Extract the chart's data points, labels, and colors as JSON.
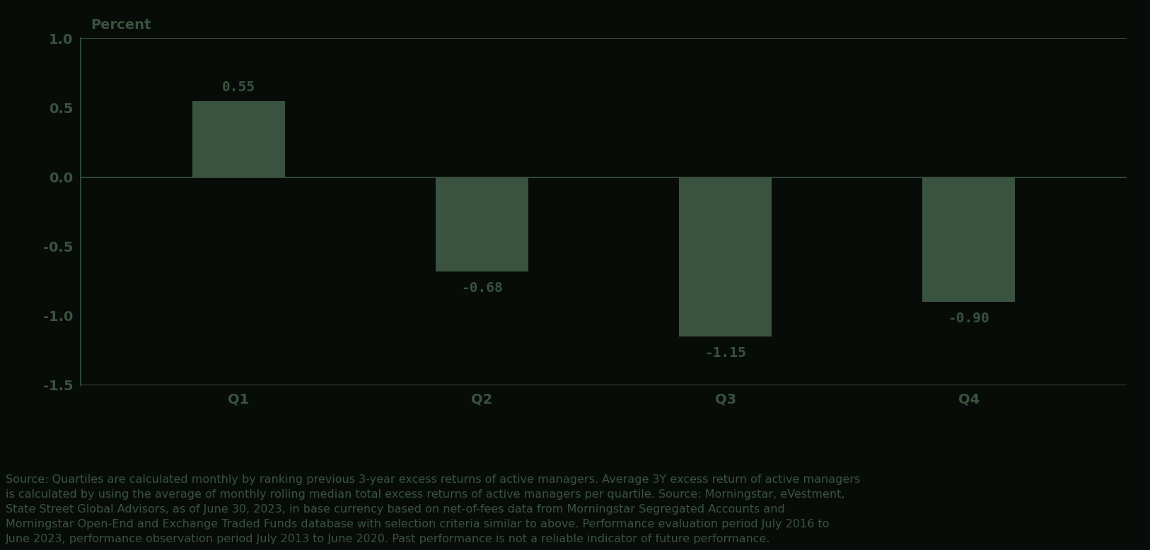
{
  "categories": [
    "Q1",
    "Q2",
    "Q3",
    "Q4"
  ],
  "values": [
    0.55,
    -0.68,
    -1.15,
    -0.9
  ],
  "bar_color": "#3a5240",
  "ylabel": "Percent",
  "ylim": [
    -1.5,
    1.0
  ],
  "yticks": [
    -1.5,
    -1.0,
    -0.5,
    0.0,
    0.5,
    1.0
  ],
  "background_color": "#080c08",
  "text_color": "#3a5240",
  "axis_color": "#3a5240",
  "bar_width": 0.38,
  "label_fontsize": 14,
  "tick_fontsize": 14,
  "annotation_fontsize": 14,
  "source_text": "Source: Quartiles are calculated monthly by ranking previous 3-year excess returns of active managers. Average 3Y excess return of active managers\nis calculated by using the average of monthly rolling median total excess returns of active managers per quartile. Source: Morningstar, eVestment,\nState Street Global Advisors, as of June 30, 2023, in base currency based on net-of-fees data from Morningstar Segregated Accounts and\nMorningstar Open-End and Exchange Traded Funds database with selection criteria similar to above. Performance evaluation period July 2016 to\nJune 2023, performance observation period July 2013 to June 2020. Past performance is not a reliable indicator of future performance.",
  "source_fontsize": 11.5
}
